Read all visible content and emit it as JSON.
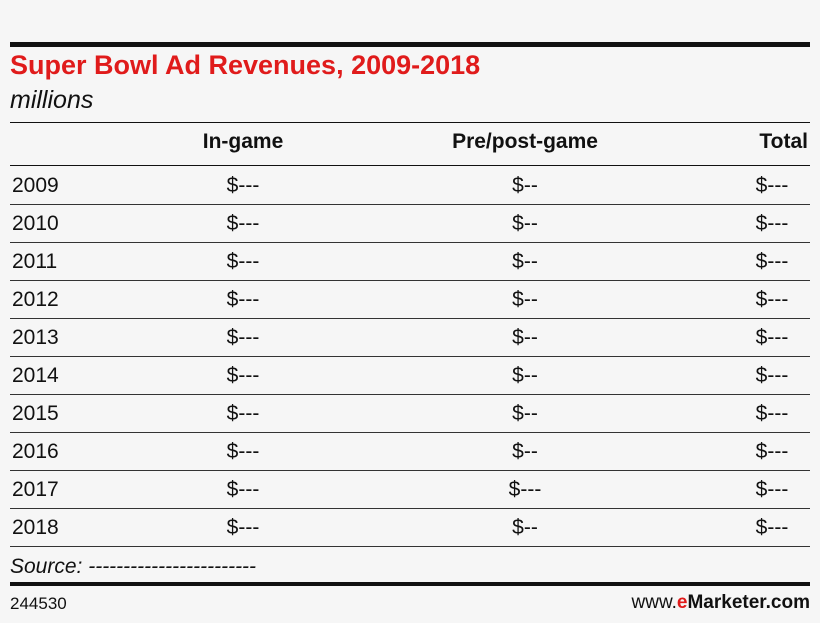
{
  "header": {
    "title": "Super Bowl Ad Revenues, 2009-2018",
    "subtitle": "millions"
  },
  "table": {
    "columns": [
      "",
      "In-game",
      "Pre/post-game",
      "Total"
    ],
    "rows": [
      [
        "2009",
        "$---",
        "$--",
        "$---"
      ],
      [
        "2010",
        "$---",
        "$--",
        "$---"
      ],
      [
        "2011",
        "$---",
        "$--",
        "$---"
      ],
      [
        "2012",
        "$---",
        "$--",
        "$---"
      ],
      [
        "2013",
        "$---",
        "$--",
        "$---"
      ],
      [
        "2014",
        "$---",
        "$--",
        "$---"
      ],
      [
        "2015",
        "$---",
        "$--",
        "$---"
      ],
      [
        "2016",
        "$---",
        "$--",
        "$---"
      ],
      [
        "2017",
        "$---",
        "$---",
        "$---"
      ],
      [
        "2018",
        "$---",
        "$--",
        "$---"
      ]
    ]
  },
  "source": "Source: ------------------------",
  "footer": {
    "id": "244530",
    "brand": {
      "prefix": "www.",
      "accent": "e",
      "rest": "Marketer.com"
    }
  }
}
